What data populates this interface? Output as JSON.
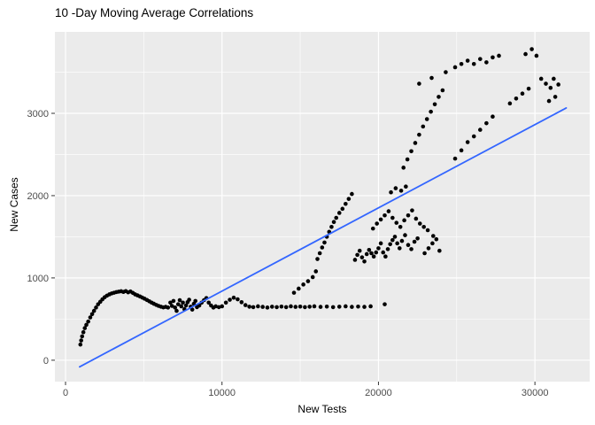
{
  "chart_data": {
    "type": "scatter",
    "title": "10 -Day Moving Average Correlations",
    "xlabel": "New Tests",
    "ylabel": "New Cases",
    "xlim": [
      -680,
      33500
    ],
    "ylim": [
      -260,
      3990
    ],
    "x_ticks": [
      0,
      10000,
      20000,
      30000
    ],
    "x_tick_labels": [
      "0",
      "10000",
      "20000",
      "30000"
    ],
    "x_minor_ticks": [
      5000,
      15000,
      25000
    ],
    "y_ticks": [
      0,
      1000,
      2000,
      3000
    ],
    "y_tick_labels": [
      "0",
      "1000",
      "2000",
      "3000"
    ],
    "y_minor_ticks": [
      500,
      1500,
      2500,
      3500
    ],
    "grid": true,
    "legend": "none",
    "panel_background": "#EBEBEB",
    "grid_major_color": "#FFFFFF",
    "grid_minor_color": "#FFFFFF",
    "tick_color": "#333333",
    "axis_text_color": "#4D4D4D",
    "point_color": "#000000",
    "point_radius": 2.3,
    "line": {
      "color": "#3366FF",
      "width": 1.8,
      "x1": 900,
      "y1": -80,
      "x2": 32000,
      "y2": 3065
    },
    "points": [
      [
        950,
        190
      ],
      [
        1000,
        240
      ],
      [
        1060,
        290
      ],
      [
        1140,
        340
      ],
      [
        1230,
        390
      ],
      [
        1330,
        430
      ],
      [
        1450,
        470
      ],
      [
        1580,
        520
      ],
      [
        1700,
        560
      ],
      [
        1820,
        600
      ],
      [
        1950,
        640
      ],
      [
        2080,
        680
      ],
      [
        2220,
        710
      ],
      [
        2360,
        740
      ],
      [
        2500,
        765
      ],
      [
        2650,
        785
      ],
      [
        2800,
        800
      ],
      [
        2950,
        812
      ],
      [
        3100,
        820
      ],
      [
        3250,
        828
      ],
      [
        3400,
        833
      ],
      [
        3550,
        838
      ],
      [
        3700,
        830
      ],
      [
        3850,
        840
      ],
      [
        4000,
        825
      ],
      [
        4150,
        835
      ],
      [
        4300,
        818
      ],
      [
        4450,
        800
      ],
      [
        4600,
        788
      ],
      [
        4750,
        775
      ],
      [
        4900,
        762
      ],
      [
        5050,
        748
      ],
      [
        5200,
        732
      ],
      [
        5350,
        716
      ],
      [
        5500,
        700
      ],
      [
        5650,
        686
      ],
      [
        5800,
        672
      ],
      [
        5950,
        660
      ],
      [
        6100,
        650
      ],
      [
        6250,
        642
      ],
      [
        6400,
        648
      ],
      [
        6550,
        640
      ],
      [
        6700,
        700
      ],
      [
        6800,
        660
      ],
      [
        6900,
        720
      ],
      [
        7000,
        640
      ],
      [
        7100,
        600
      ],
      [
        7200,
        680
      ],
      [
        7300,
        730
      ],
      [
        7400,
        655
      ],
      [
        7500,
        700
      ],
      [
        7600,
        620
      ],
      [
        7700,
        665
      ],
      [
        7800,
        705
      ],
      [
        7900,
        735
      ],
      [
        8000,
        650
      ],
      [
        8100,
        615
      ],
      [
        8200,
        685
      ],
      [
        8300,
        720
      ],
      [
        8400,
        645
      ],
      [
        8550,
        665
      ],
      [
        8700,
        700
      ],
      [
        8850,
        730
      ],
      [
        9000,
        755
      ],
      [
        9150,
        700
      ],
      [
        9300,
        665
      ],
      [
        9450,
        640
      ],
      [
        9600,
        655
      ],
      [
        9800,
        645
      ],
      [
        10000,
        655
      ],
      [
        10250,
        700
      ],
      [
        10500,
        735
      ],
      [
        10750,
        760
      ],
      [
        11000,
        740
      ],
      [
        11250,
        705
      ],
      [
        11500,
        670
      ],
      [
        11750,
        650
      ],
      [
        12000,
        645
      ],
      [
        12300,
        655
      ],
      [
        12600,
        648
      ],
      [
        12900,
        640
      ],
      [
        13200,
        650
      ],
      [
        13500,
        645
      ],
      [
        13800,
        652
      ],
      [
        14100,
        645
      ],
      [
        14400,
        655
      ],
      [
        14700,
        648
      ],
      [
        15000,
        652
      ],
      [
        15300,
        645
      ],
      [
        15600,
        650
      ],
      [
        15900,
        655
      ],
      [
        16300,
        648
      ],
      [
        16700,
        652
      ],
      [
        17100,
        645
      ],
      [
        17500,
        650
      ],
      [
        17900,
        655
      ],
      [
        18300,
        648
      ],
      [
        18700,
        652
      ],
      [
        19100,
        648
      ],
      [
        19500,
        655
      ],
      [
        20400,
        680
      ],
      [
        14600,
        820
      ],
      [
        14900,
        870
      ],
      [
        15200,
        920
      ],
      [
        15500,
        960
      ],
      [
        15800,
        1010
      ],
      [
        16000,
        1080
      ],
      [
        16100,
        1230
      ],
      [
        16250,
        1300
      ],
      [
        16400,
        1370
      ],
      [
        16550,
        1430
      ],
      [
        16700,
        1500
      ],
      [
        16850,
        1560
      ],
      [
        17000,
        1620
      ],
      [
        17150,
        1680
      ],
      [
        17300,
        1730
      ],
      [
        17500,
        1790
      ],
      [
        17700,
        1840
      ],
      [
        17900,
        1900
      ],
      [
        18100,
        1960
      ],
      [
        18300,
        2020
      ],
      [
        18500,
        1220
      ],
      [
        18650,
        1280
      ],
      [
        18800,
        1330
      ],
      [
        18950,
        1250
      ],
      [
        19100,
        1200
      ],
      [
        19250,
        1290
      ],
      [
        19400,
        1340
      ],
      [
        19550,
        1300
      ],
      [
        19700,
        1260
      ],
      [
        19850,
        1310
      ],
      [
        20000,
        1360
      ],
      [
        20150,
        1420
      ],
      [
        20300,
        1310
      ],
      [
        20450,
        1260
      ],
      [
        20600,
        1350
      ],
      [
        20750,
        1410
      ],
      [
        20900,
        1460
      ],
      [
        21050,
        1500
      ],
      [
        21200,
        1420
      ],
      [
        21350,
        1360
      ],
      [
        21500,
        1450
      ],
      [
        21700,
        1520
      ],
      [
        21900,
        1400
      ],
      [
        22100,
        1350
      ],
      [
        22300,
        1440
      ],
      [
        22500,
        1480
      ],
      [
        19650,
        1600
      ],
      [
        19900,
        1660
      ],
      [
        20150,
        1710
      ],
      [
        20400,
        1760
      ],
      [
        20650,
        1810
      ],
      [
        20900,
        1730
      ],
      [
        21150,
        1670
      ],
      [
        21400,
        1620
      ],
      [
        21650,
        1700
      ],
      [
        21900,
        1760
      ],
      [
        22150,
        1820
      ],
      [
        22400,
        1720
      ],
      [
        22650,
        1660
      ],
      [
        22900,
        1620
      ],
      [
        23150,
        1580
      ],
      [
        20800,
        2040
      ],
      [
        21100,
        2090
      ],
      [
        21450,
        2060
      ],
      [
        21750,
        2110
      ],
      [
        22950,
        1300
      ],
      [
        23200,
        1360
      ],
      [
        23450,
        1420
      ],
      [
        23700,
        1470
      ],
      [
        23500,
        1510
      ],
      [
        23900,
        1330
      ],
      [
        21600,
        2340
      ],
      [
        21850,
        2440
      ],
      [
        22100,
        2540
      ],
      [
        22350,
        2640
      ],
      [
        22600,
        2740
      ],
      [
        22850,
        2840
      ],
      [
        23100,
        2930
      ],
      [
        23350,
        3020
      ],
      [
        23600,
        3110
      ],
      [
        23850,
        3200
      ],
      [
        24100,
        3280
      ],
      [
        22600,
        3360
      ],
      [
        23400,
        3430
      ],
      [
        24300,
        3500
      ],
      [
        24900,
        3560
      ],
      [
        25300,
        3600
      ],
      [
        25700,
        3640
      ],
      [
        26100,
        3600
      ],
      [
        26500,
        3660
      ],
      [
        26900,
        3620
      ],
      [
        27300,
        3680
      ],
      [
        27700,
        3700
      ],
      [
        24900,
        2450
      ],
      [
        25300,
        2550
      ],
      [
        25700,
        2650
      ],
      [
        26100,
        2720
      ],
      [
        26500,
        2800
      ],
      [
        26900,
        2880
      ],
      [
        27300,
        2960
      ],
      [
        28400,
        3120
      ],
      [
        28800,
        3180
      ],
      [
        29200,
        3240
      ],
      [
        29600,
        3300
      ],
      [
        29400,
        3720
      ],
      [
        29800,
        3780
      ],
      [
        30100,
        3700
      ],
      [
        30400,
        3420
      ],
      [
        30700,
        3360
      ],
      [
        31000,
        3310
      ],
      [
        31200,
        3420
      ],
      [
        31500,
        3350
      ],
      [
        30900,
        3150
      ],
      [
        31300,
        3200
      ]
    ]
  }
}
